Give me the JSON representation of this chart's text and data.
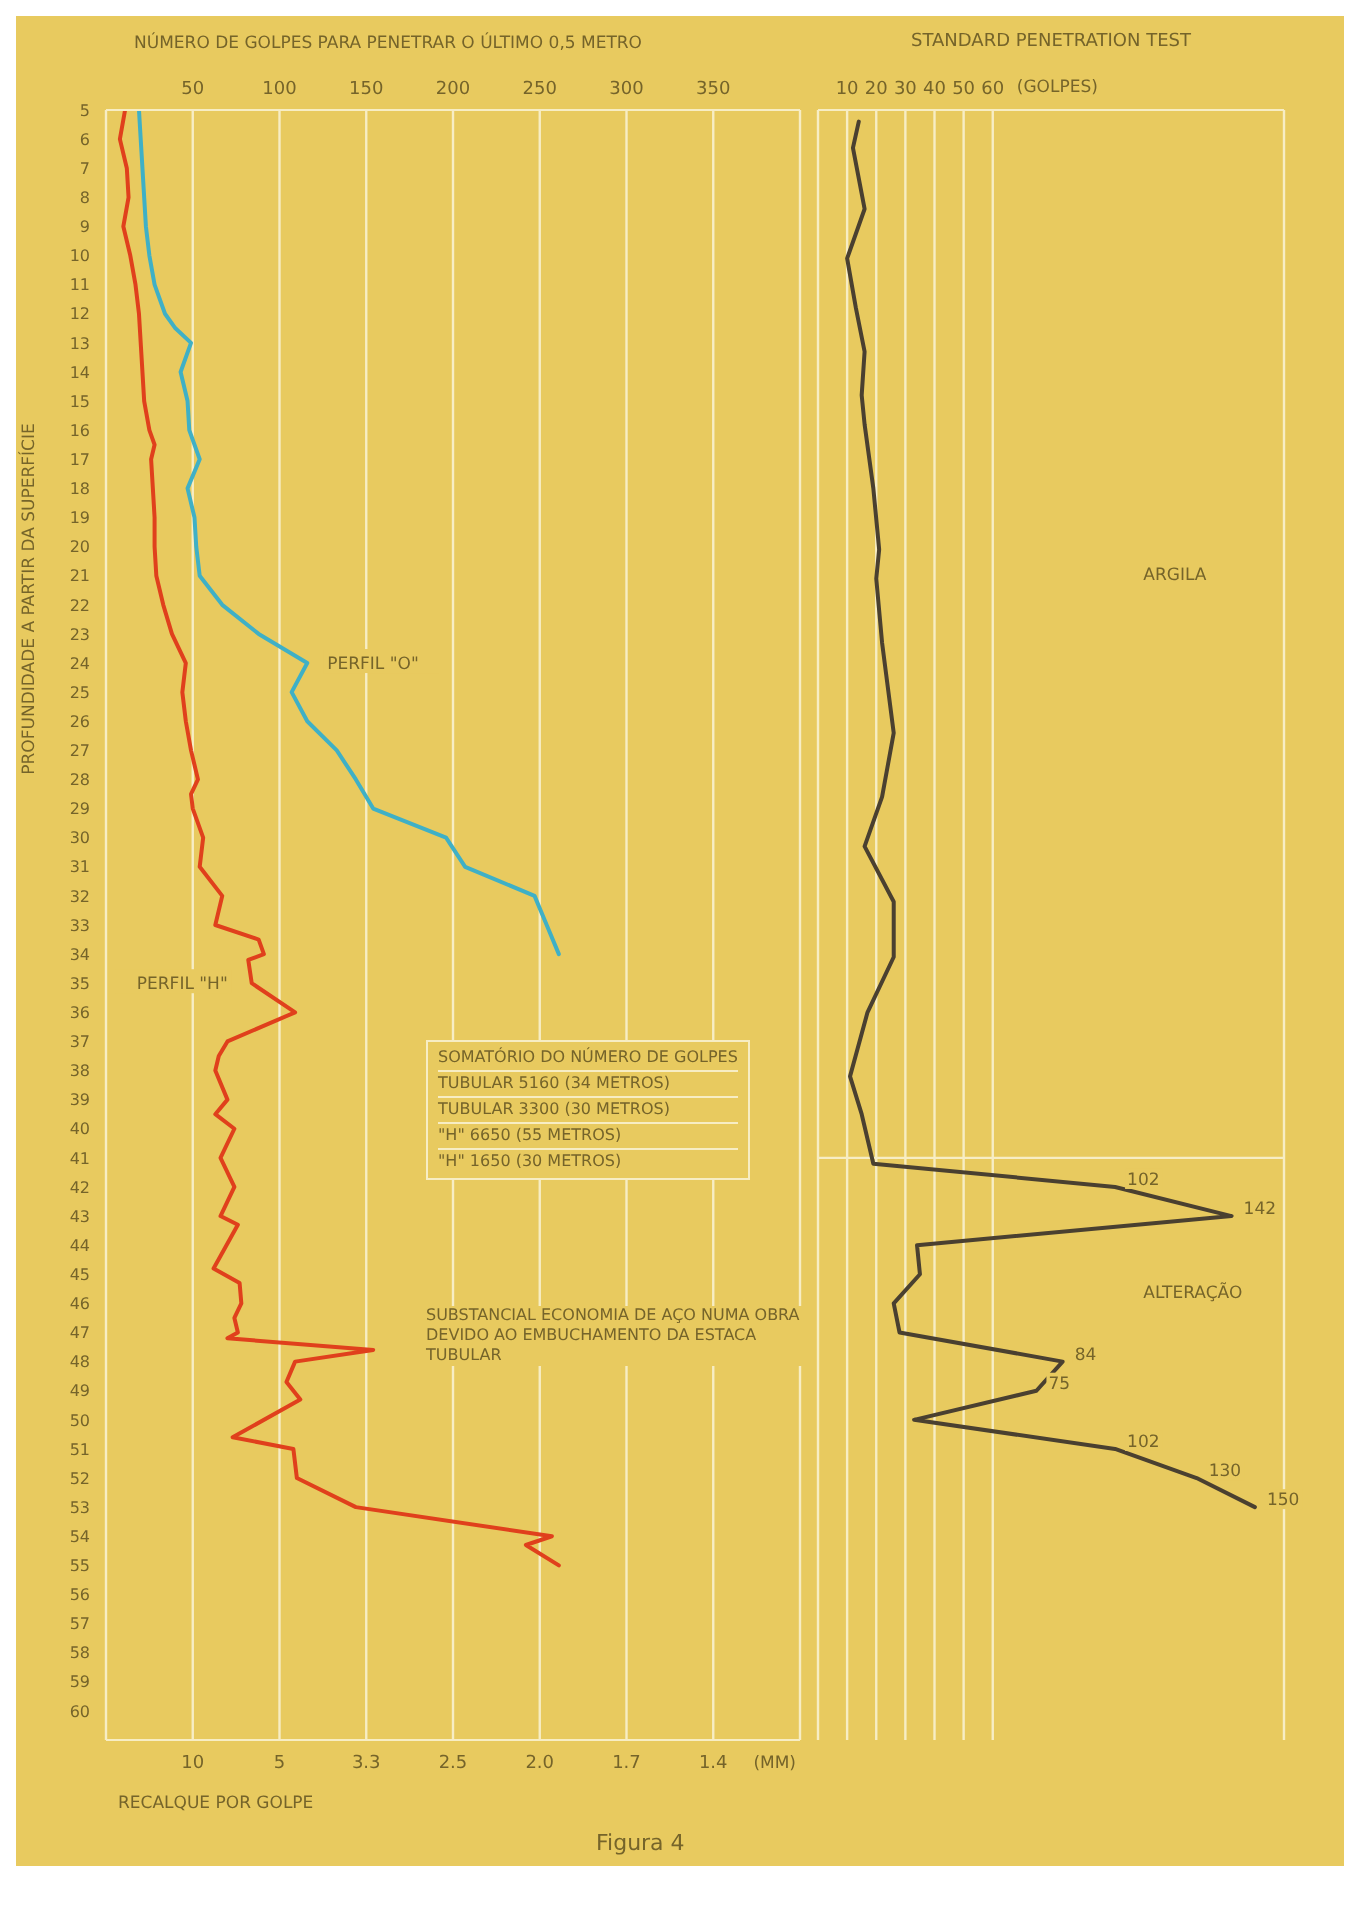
{
  "chart_data": [
    {
      "type": "line",
      "orientation": "horizontal",
      "ylabel": "PROFUNDIDADE A PARTIR DA SUPERFÍCIE",
      "xlabel": "NÚMERO DE GOLPES PARA PENETRAR O ÚLTIMO 0,5 METRO",
      "x2label": "RECALQUE POR GOLPE",
      "xlim": [
        0,
        400
      ],
      "xticks": [
        50,
        100,
        150,
        200,
        250,
        300,
        350
      ],
      "ylim": [
        61,
        5
      ],
      "yticks": [
        5,
        6,
        7,
        8,
        9,
        10,
        11,
        12,
        13,
        14,
        15,
        16,
        17,
        18,
        19,
        20,
        21,
        22,
        23,
        24,
        25,
        26,
        27,
        28,
        29,
        30,
        31,
        32,
        33,
        34,
        35,
        36,
        37,
        38,
        39,
        40,
        41,
        42,
        43,
        44,
        45,
        46,
        47,
        48,
        49,
        50,
        51,
        52,
        53,
        54,
        55,
        56,
        57,
        58,
        59,
        60
      ],
      "grid": "x",
      "series": [
        {
          "name": "PERFIL \"O\"",
          "color": "#3fb0c6",
          "values": [
            19,
            20,
            21,
            22,
            23,
            25,
            28,
            34,
            40,
            49,
            43,
            47,
            48,
            54,
            47,
            51,
            52,
            54,
            67,
            88,
            116,
            107,
            116,
            133,
            144,
            154,
            196,
            207,
            247,
            254,
            261
          ],
          "x": [
            5,
            6,
            7,
            8,
            9,
            10,
            11,
            12,
            12.5,
            13,
            14,
            15,
            16,
            17,
            18,
            19,
            20,
            21,
            22,
            23,
            24,
            25,
            26,
            27,
            28,
            29,
            30,
            31,
            32,
            33,
            34
          ]
        },
        {
          "name": "PERFIL \"H\"",
          "color": "#e0401c",
          "values": [
            11,
            8,
            12,
            13,
            10,
            14,
            17,
            19,
            20,
            21,
            22,
            25,
            28,
            26,
            27,
            28,
            28,
            29,
            33,
            38,
            46,
            44,
            46,
            49,
            53,
            49,
            50,
            56,
            54,
            67,
            63,
            88,
            91,
            82,
            84,
            109,
            70,
            65,
            63,
            70,
            63,
            74,
            66,
            74,
            66,
            76,
            62,
            77,
            78,
            74,
            76,
            70,
            154,
            109,
            104,
            112,
            73,
            108,
            109,
            110,
            144,
            257,
            242,
            261
          ],
          "x": [
            5,
            6,
            7,
            8,
            9,
            10,
            11,
            12,
            13,
            14,
            15,
            16,
            16.5,
            17,
            18,
            19,
            20,
            21,
            22,
            23,
            24,
            25,
            26,
            27,
            28,
            28.5,
            29,
            30,
            31,
            32,
            33,
            33.5,
            34,
            34.2,
            35,
            36,
            37,
            37.5,
            38,
            39,
            39.5,
            40,
            41,
            42,
            43,
            43.3,
            44.8,
            45.3,
            46,
            46.5,
            47,
            47.2,
            47.6,
            48,
            48.7,
            49.3,
            50.6,
            51,
            51.5,
            52,
            53,
            54,
            54.3,
            55
          ]
        }
      ],
      "annotations": [
        "10",
        "5",
        "3.3",
        "2.5",
        "2.0",
        "1.7",
        "1.4",
        "(MM)",
        "SOMATÓRIO DO NÚMERO DE GOLPES",
        "TUBULAR 5160 (34 METROS)",
        "TUBULAR 3300 (30 METROS)",
        "\"H\" 6650 (55 METROS)",
        "\"H\" 1650 (30 METROS)",
        "SUBSTANCIAL ECONOMIA DE AÇO NUMA OBRA DEVIDO AO EMBUCHAMENTO DA ESTACA TUBULAR",
        "Figura 4"
      ]
    },
    {
      "type": "line",
      "orientation": "horizontal",
      "title": "STANDARD PENETRATION TEST",
      "xlabel": "(GOLPES)",
      "xlim": [
        0,
        160
      ],
      "xticks": [
        10,
        20,
        30,
        40,
        50,
        60
      ],
      "ylim": [
        61,
        5
      ],
      "tick_labels": "x",
      "grid": "x",
      "ref_lines": [
        {
          "axis": "y",
          "value": 41
        }
      ],
      "series": [
        {
          "color": "#4a4030",
          "values": [
            14,
            12,
            16,
            10,
            13,
            16,
            15,
            16,
            19,
            21,
            20,
            22,
            26,
            22,
            16,
            26,
            26,
            17,
            11,
            15,
            19,
            102,
            142,
            34,
            35,
            26,
            28,
            84,
            75,
            33,
            102,
            130,
            150
          ],
          "x": [
            5.4,
            6.3,
            8.4,
            10.1,
            11.8,
            13.3,
            14.8,
            15.8,
            18,
            20.1,
            21.1,
            23.3,
            26.4,
            28.6,
            30.3,
            32.2,
            34.1,
            36,
            38.2,
            39.5,
            41.2,
            42,
            43,
            44,
            45,
            46,
            47,
            48,
            49,
            50,
            51,
            52,
            53
          ],
          "value_labels": [
            null,
            null,
            null,
            null,
            null,
            null,
            null,
            null,
            null,
            null,
            null,
            null,
            null,
            null,
            null,
            null,
            null,
            null,
            null,
            null,
            null,
            "102",
            "142",
            null,
            null,
            null,
            null,
            "84",
            "75",
            null,
            "102",
            "130",
            "150"
          ]
        }
      ],
      "annotations": [
        "ARGILA",
        "ALTERAÇÃO"
      ]
    }
  ]
}
